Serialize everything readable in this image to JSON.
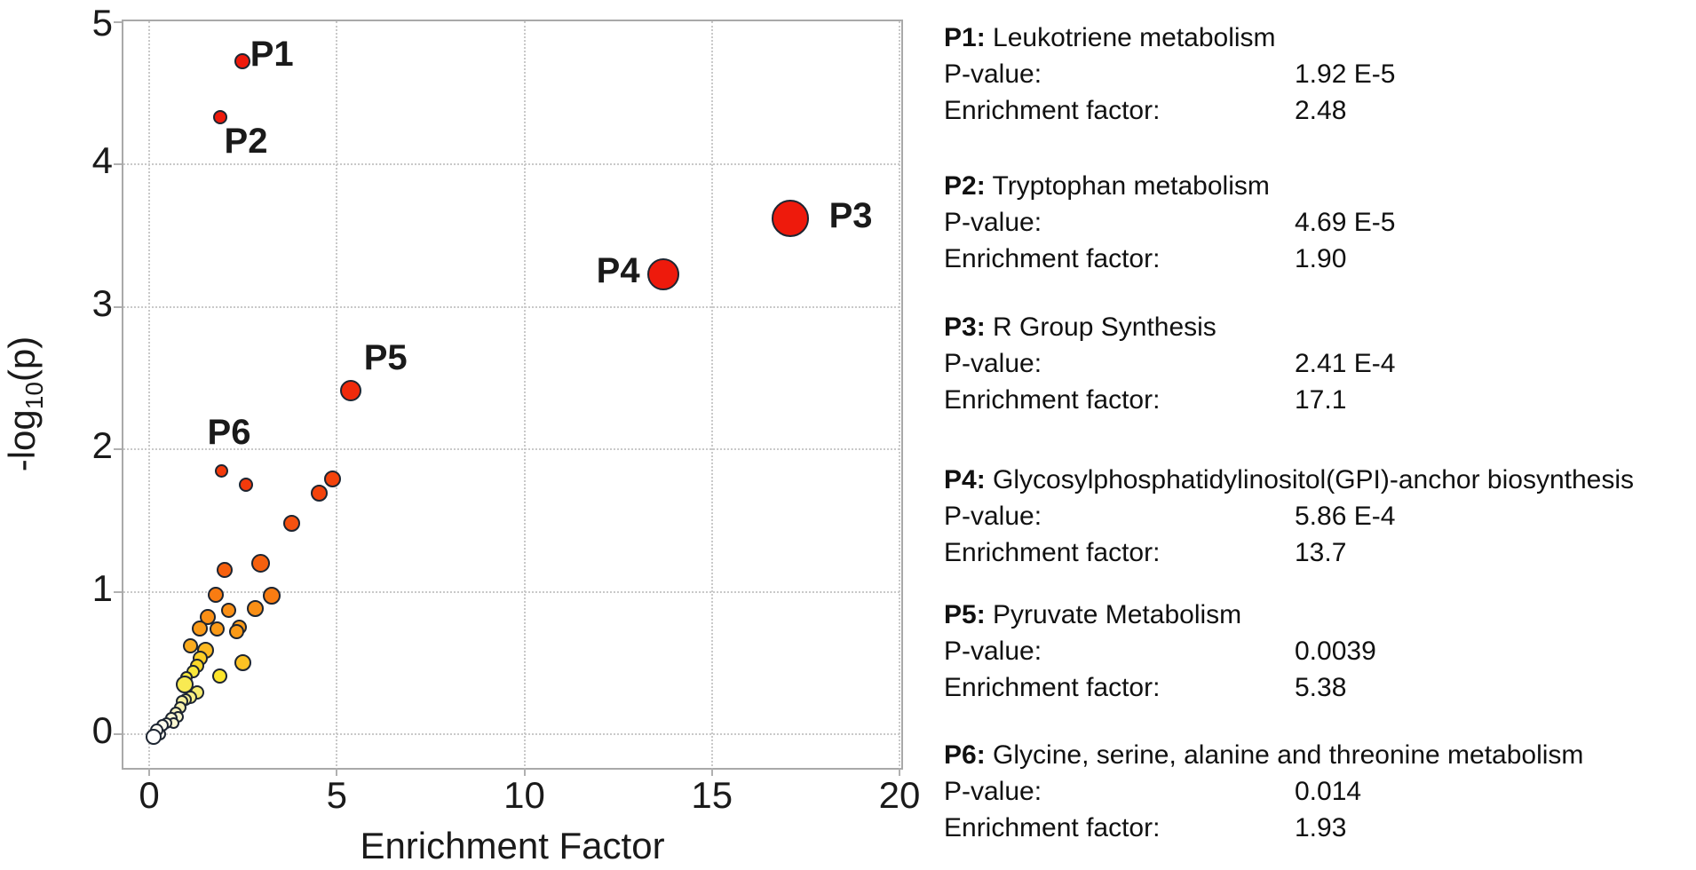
{
  "chart_data": {
    "type": "scatter",
    "title": "",
    "xlabel": "Enrichment Factor",
    "ylabel": "-log10(p)",
    "ylabel_main": "-log",
    "ylabel_sub": "10",
    "ylabel_end": "(p)",
    "xlim": [
      0,
      20
    ],
    "ylim": [
      0,
      5
    ],
    "x_ticks": [
      0,
      5,
      10,
      15,
      20
    ],
    "y_ticks": [
      0,
      1,
      2,
      3,
      4,
      5
    ],
    "grid": "dotted",
    "legend_position": "none",
    "colors": {
      "frame": "#a9a9a9",
      "grid": "#c9c9c9",
      "dot_stroke": "#1d2531",
      "red": "#ee1a0c",
      "orange": "#f98f16",
      "yellow": "#fce52c",
      "white": "#ffffff"
    },
    "points": [
      {
        "id": "P1",
        "x": 2.48,
        "y": 4.72,
        "r": 9,
        "c": "#ee1a0c",
        "label": "P1",
        "lx": 3.27,
        "ly": 4.77
      },
      {
        "id": "P2",
        "x": 1.9,
        "y": 4.33,
        "r": 8,
        "c": "#ee1a0c",
        "label": "P2",
        "lx": 2.58,
        "ly": 4.16
      },
      {
        "id": "P3",
        "x": 17.1,
        "y": 3.62,
        "r": 21,
        "c": "#ee1a0c",
        "label": "P3",
        "lx": 18.7,
        "ly": 3.64
      },
      {
        "id": "P4",
        "x": 13.7,
        "y": 3.23,
        "r": 18,
        "c": "#ee1a0c",
        "label": "P4",
        "lx": 12.5,
        "ly": 3.25
      },
      {
        "id": "P5",
        "x": 5.38,
        "y": 2.41,
        "r": 12,
        "c": "#f02a0b",
        "label": "P5",
        "lx": 6.3,
        "ly": 2.64
      },
      {
        "id": "P6",
        "x": 1.93,
        "y": 1.85,
        "r": 7.5,
        "c": "#f23a0b",
        "label": "P6",
        "lx": 2.13,
        "ly": 2.12
      },
      {
        "x": 2.58,
        "y": 1.75,
        "r": 8,
        "c": "#f23a0b"
      },
      {
        "x": 4.88,
        "y": 1.79,
        "r": 9.5,
        "c": "#f3430c"
      },
      {
        "x": 4.54,
        "y": 1.69,
        "r": 9.5,
        "c": "#f3430c"
      },
      {
        "x": 3.81,
        "y": 1.48,
        "r": 9.5,
        "c": "#f55110"
      },
      {
        "x": 2.98,
        "y": 1.2,
        "r": 10.5,
        "c": "#f6600e"
      },
      {
        "x": 2.01,
        "y": 1.15,
        "r": 9,
        "c": "#f6600e"
      },
      {
        "x": 3.27,
        "y": 0.97,
        "r": 10,
        "c": "#f87c12"
      },
      {
        "x": 1.78,
        "y": 0.98,
        "r": 9,
        "c": "#f87c12"
      },
      {
        "x": 2.84,
        "y": 0.88,
        "r": 9.5,
        "c": "#f98f16"
      },
      {
        "x": 2.13,
        "y": 0.87,
        "r": 8.5,
        "c": "#f98f16"
      },
      {
        "x": 1.56,
        "y": 0.82,
        "r": 9,
        "c": "#f98f16"
      },
      {
        "x": 2.41,
        "y": 0.75,
        "r": 8.5,
        "c": "#fa9a18"
      },
      {
        "x": 2.32,
        "y": 0.72,
        "r": 8.5,
        "c": "#fa9a18"
      },
      {
        "x": 1.35,
        "y": 0.74,
        "r": 9,
        "c": "#fa9a18"
      },
      {
        "x": 1.8,
        "y": 0.74,
        "r": 8.5,
        "c": "#fa9a18"
      },
      {
        "x": 1.11,
        "y": 0.62,
        "r": 8.5,
        "c": "#fbab1e"
      },
      {
        "x": 1.51,
        "y": 0.59,
        "r": 9.5,
        "c": "#fcb922"
      },
      {
        "x": 2.49,
        "y": 0.5,
        "r": 9.5,
        "c": "#fcc224"
      },
      {
        "x": 1.35,
        "y": 0.53,
        "r": 8.5,
        "c": "#fcce26"
      },
      {
        "x": 1.28,
        "y": 0.48,
        "r": 8,
        "c": "#fcd828"
      },
      {
        "x": 1.87,
        "y": 0.41,
        "r": 8.5,
        "c": "#fce52c"
      },
      {
        "x": 1.16,
        "y": 0.44,
        "r": 7.5,
        "c": "#f9e83c"
      },
      {
        "x": 0.99,
        "y": 0.4,
        "r": 7,
        "c": "#f9e83c"
      },
      {
        "x": 0.95,
        "y": 0.35,
        "r": 10,
        "c": "#f8ea52"
      },
      {
        "x": 1.28,
        "y": 0.29,
        "r": 8,
        "c": "#f8ec6e"
      },
      {
        "x": 1.11,
        "y": 0.26,
        "r": 7.5,
        "c": "#f7ee85"
      },
      {
        "x": 0.97,
        "y": 0.24,
        "r": 7,
        "c": "#f7f09c"
      },
      {
        "x": 0.88,
        "y": 0.23,
        "r": 7,
        "c": "#f7f09c"
      },
      {
        "x": 0.83,
        "y": 0.19,
        "r": 7,
        "c": "#f8f2ae"
      },
      {
        "x": 0.71,
        "y": 0.15,
        "r": 7,
        "c": "#f9f5c2"
      },
      {
        "x": 0.76,
        "y": 0.12,
        "r": 6.5,
        "c": "#faf7cc"
      },
      {
        "x": 0.59,
        "y": 0.11,
        "r": 7,
        "c": "#fbf8d4"
      },
      {
        "x": 0.66,
        "y": 0.08,
        "r": 6.5,
        "c": "#fbf8d4"
      },
      {
        "x": 0.47,
        "y": 0.08,
        "r": 6.5,
        "c": "#fcfae2"
      },
      {
        "x": 0.36,
        "y": 0.06,
        "r": 7,
        "c": "#fdfcee"
      },
      {
        "x": 0.28,
        "y": 0.0,
        "r": 7,
        "c": "#fefdf6"
      },
      {
        "x": 0.19,
        "y": 0.03,
        "r": 7.5,
        "c": "#fefdf6"
      },
      {
        "x": 0.12,
        "y": -0.02,
        "r": 9,
        "c": "#ffffff"
      }
    ]
  },
  "legend": {
    "p_label": "P-value:",
    "ef_label": "Enrichment factor:",
    "entries": [
      {
        "id": "P1:",
        "name": "Leukotriene metabolism",
        "p": "1.92 E-5",
        "ef": "2.48"
      },
      {
        "id": "P2:",
        "name": "Tryptophan metabolism",
        "p": "4.69 E-5",
        "ef": "1.90"
      },
      {
        "id": "P3:",
        "name": "R Group Synthesis",
        "p": "2.41 E-4",
        "ef": "17.1"
      },
      {
        "id": "P4:",
        "name": "Glycosylphosphatidylinositol(GPI)-anchor biosynthesis",
        "p": "5.86 E-4",
        "ef": "13.7"
      },
      {
        "id": "P5:",
        "name": "Pyruvate Metabolism",
        "p": "0.0039",
        "ef": "5.38"
      },
      {
        "id": "P6:",
        "name": "Glycine, serine, alanine and threonine metabolism",
        "p": "0.014",
        "ef": "1.93"
      }
    ]
  }
}
